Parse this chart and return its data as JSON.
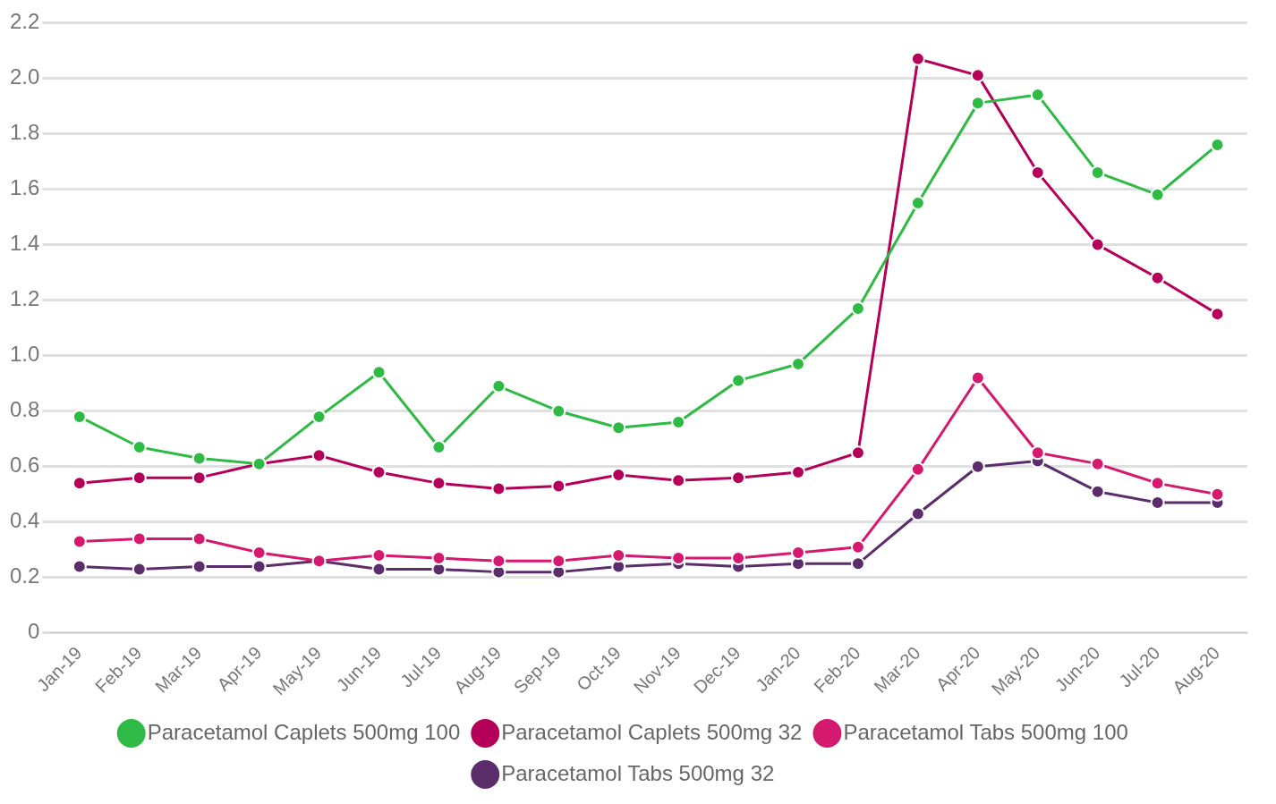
{
  "chart_data": {
    "type": "line",
    "categories": [
      "Jan-19",
      "Feb-19",
      "Mar-19",
      "Apr-19",
      "May-19",
      "Jun-19",
      "Jul-19",
      "Aug-19",
      "Sep-19",
      "Oct-19",
      "Nov-19",
      "Dec-19",
      "Jan-20",
      "Feb-20",
      "Mar-20",
      "Apr-20",
      "May-20",
      "Jun-20",
      "Jul-20",
      "Aug-20"
    ],
    "series": [
      {
        "name": "Paracetamol Caplets 500mg 100",
        "color": "#2fba45",
        "values": [
          0.78,
          0.67,
          0.63,
          0.61,
          0.78,
          0.94,
          0.67,
          0.89,
          0.8,
          0.74,
          0.76,
          0.91,
          0.97,
          1.17,
          1.55,
          1.91,
          1.94,
          1.66,
          1.58,
          1.76
        ]
      },
      {
        "name": "Paracetamol Caplets 500mg 32",
        "color": "#b5005a",
        "values": [
          0.54,
          0.56,
          0.56,
          0.61,
          0.64,
          0.58,
          0.54,
          0.52,
          0.53,
          0.57,
          0.55,
          0.56,
          0.58,
          0.65,
          2.07,
          2.01,
          1.66,
          1.4,
          1.28,
          1.15
        ]
      },
      {
        "name": "Paracetamol Tabs 500mg 100",
        "color": "#d4196e",
        "values": [
          0.33,
          0.34,
          0.34,
          0.29,
          0.26,
          0.28,
          0.27,
          0.26,
          0.26,
          0.28,
          0.27,
          0.27,
          0.29,
          0.31,
          0.59,
          0.92,
          0.65,
          0.61,
          0.54,
          0.5
        ]
      },
      {
        "name": "Paracetamol Tabs 500mg 32",
        "color": "#5b2d6b",
        "values": [
          0.24,
          0.23,
          0.24,
          0.24,
          0.26,
          0.23,
          0.23,
          0.22,
          0.22,
          0.24,
          0.25,
          0.24,
          0.25,
          0.25,
          0.43,
          0.6,
          0.62,
          0.51,
          0.47,
          0.47
        ]
      }
    ],
    "ylim": [
      0,
      2.2
    ],
    "yticks": [
      0,
      0.2,
      0.4,
      0.6,
      0.8,
      {
        "value": 1,
        "label": "1.0"
      },
      1.2,
      1.4,
      1.6,
      1.8,
      {
        "value": 2,
        "label": "2.0"
      },
      2.2
    ],
    "grid": "y",
    "legend": "bottom",
    "marker": "circle",
    "line_style": "solid"
  }
}
